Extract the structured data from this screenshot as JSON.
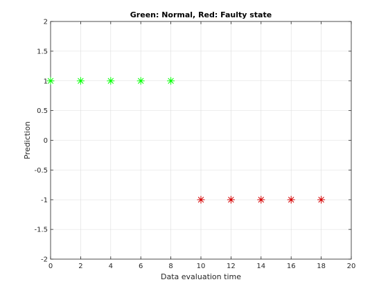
{
  "chart_data": {
    "type": "scatter",
    "title": "Green: Normal, Red: Faulty state",
    "xlabel": "Data evaluation time",
    "ylabel": "Prediction",
    "xlim": [
      0,
      20
    ],
    "ylim": [
      -2,
      2
    ],
    "xticks": [
      "0",
      "2",
      "4",
      "6",
      "8",
      "10",
      "12",
      "14",
      "16",
      "18",
      "20"
    ],
    "yticks": [
      "2",
      "1.5",
      "1",
      "0.5",
      "0",
      "-0.5",
      "-1",
      "-1.5",
      "-2"
    ],
    "grid": true,
    "marker": "asterisk",
    "series": [
      {
        "color": "#00ff00",
        "x": [
          0,
          2,
          4,
          6,
          8
        ],
        "y": [
          1,
          1,
          1,
          1,
          1
        ]
      },
      {
        "color": "#d40000",
        "x": [
          10,
          12,
          14,
          16,
          18
        ],
        "y": [
          -1,
          -1,
          -1,
          -1,
          -1
        ]
      }
    ]
  }
}
